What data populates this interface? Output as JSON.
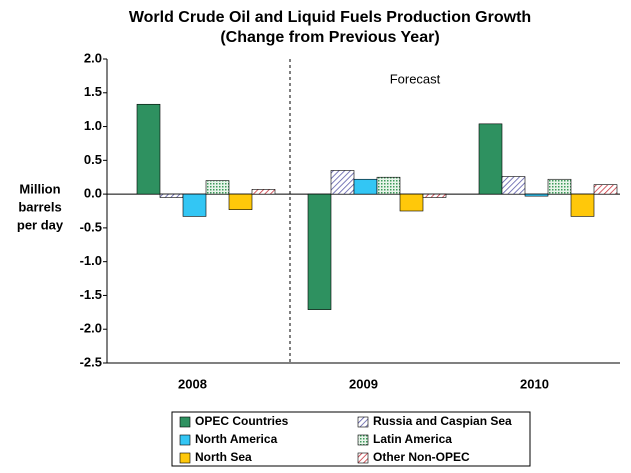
{
  "chart_data": {
    "type": "bar",
    "title": "World Crude Oil and Liquid Fuels Production Growth",
    "subtitle": "(Change from Previous Year)",
    "y_label": [
      "Million",
      "barrels",
      "per day"
    ],
    "annotation": "Forecast",
    "categories": [
      "2008",
      "2009",
      "2010"
    ],
    "series": [
      {
        "name": "OPEC Countries",
        "color": "#2e9160",
        "fill_style": "solid",
        "values": [
          1.33,
          -1.71,
          1.04
        ]
      },
      {
        "name": "Russia and Caspian Sea",
        "color": "#5a5aa8",
        "fill_style": "hatch",
        "values": [
          -0.05,
          0.35,
          0.26
        ]
      },
      {
        "name": "North America",
        "color": "#33c6f4",
        "fill_style": "solid",
        "values": [
          -0.33,
          0.22,
          -0.03
        ]
      },
      {
        "name": "Latin America",
        "color": "#3d9a5a",
        "fill_style": "dots",
        "values": [
          0.2,
          0.25,
          0.22
        ]
      },
      {
        "name": "North Sea",
        "color": "#ffc80a",
        "fill_style": "solid",
        "values": [
          -0.23,
          -0.25,
          -0.33
        ]
      },
      {
        "name": "Other Non-OPEC",
        "color": "#c8323c",
        "fill_style": "hatch",
        "values": [
          0.07,
          -0.05,
          0.14
        ]
      }
    ],
    "ylim": [
      -2.5,
      2
    ],
    "yticks": [
      {
        "value": 2,
        "label": "2.0"
      },
      1.5,
      {
        "value": 1,
        "label": "1.0"
      },
      0.5,
      {
        "value": 0,
        "label": "0.0"
      },
      -0.5,
      {
        "value": -1,
        "label": "-1.0"
      },
      -1.5,
      {
        "value": -2,
        "label": "-2.0"
      },
      -2.5
    ],
    "grid": false
  }
}
